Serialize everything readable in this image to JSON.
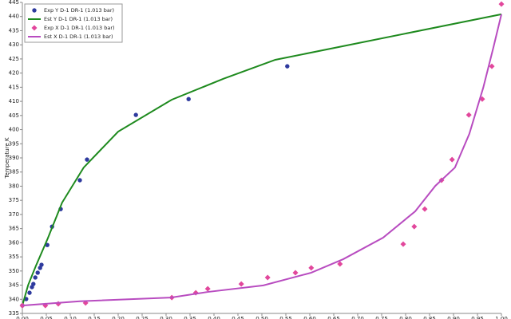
{
  "chart_data": {
    "type": "scatter",
    "y_label": "Temperature K",
    "xlim": [
      0,
      1
    ],
    "ylim": [
      335,
      445
    ],
    "xticks": [
      {
        "value": 0,
        "label": "0.00"
      },
      {
        "value": 0.05,
        "label": "0.05"
      },
      {
        "value": 0.1,
        "label": "0.10"
      },
      {
        "value": 0.15,
        "label": "0.15"
      },
      {
        "value": 0.2,
        "label": "0.20"
      },
      {
        "value": 0.25,
        "label": "0.25"
      },
      {
        "value": 0.3,
        "label": "0.30"
      },
      {
        "value": 0.35,
        "label": "0.35"
      },
      {
        "value": 0.4,
        "label": "0.40"
      },
      {
        "value": 0.45,
        "label": "0.45"
      },
      {
        "value": 0.5,
        "label": "0.50"
      },
      {
        "value": 0.55,
        "label": "0.55"
      },
      {
        "value": 0.6,
        "label": "0.60"
      },
      {
        "value": 0.65,
        "label": "0.65"
      },
      {
        "value": 0.7,
        "label": "0.70"
      },
      {
        "value": 0.75,
        "label": "0.75"
      },
      {
        "value": 0.8,
        "label": "0.80"
      },
      {
        "value": 0.85,
        "label": "0.85"
      },
      {
        "value": 0.9,
        "label": "0.90"
      },
      {
        "value": 0.95,
        "label": "0.95"
      },
      {
        "value": 1,
        "label": "1.00"
      }
    ],
    "yticks": [
      335,
      340,
      345,
      350,
      355,
      360,
      365,
      370,
      375,
      380,
      385,
      390,
      395,
      400,
      405,
      410,
      415,
      420,
      425,
      430,
      435,
      440,
      445
    ],
    "series": [
      {
        "name": "Exp Y D-1 DR-1  (1.013 bar)",
        "color": "#2e3a9e",
        "style": "marker",
        "marker": "circle",
        "x": [
          0,
          0.008,
          0.015,
          0.02,
          0.023,
          0.027,
          0.032,
          0.037,
          0.04,
          0.052,
          0.062,
          0.08,
          0.12,
          0.135,
          0.237,
          0.347,
          0.553
        ],
        "values": [
          337.8,
          340.1,
          342.3,
          344.3,
          345.4,
          347.7,
          349.4,
          351.1,
          352.2,
          359.2,
          365.7,
          371.9,
          382.1,
          389.4,
          405.2,
          410.8,
          422.4
        ]
      },
      {
        "name": "Est Y D-1 DR-1  (1.013 bar)",
        "color": "#1e8a1e",
        "style": "line",
        "x": [
          0,
          0.012,
          0.028,
          0.053,
          0.083,
          0.128,
          0.2,
          0.312,
          0.42,
          0.528,
          1
        ],
        "values": [
          337.8,
          345,
          351.7,
          361.5,
          374.2,
          386.6,
          399.3,
          410.6,
          418,
          424.7,
          440.8
        ]
      },
      {
        "name": "Exp X D-1 DR-1  (1.013 bar)",
        "color": "#e2479c",
        "style": "marker",
        "marker": "diamond",
        "x": [
          0,
          0.048,
          0.075,
          0.132,
          0.312,
          0.362,
          0.387,
          0.457,
          0.512,
          0.57,
          0.603,
          0.663,
          0.795,
          0.818,
          0.84,
          0.875,
          0.897,
          0.932,
          0.96,
          0.98,
          1
        ],
        "values": [
          337.8,
          337.8,
          338.4,
          338.7,
          340.6,
          342.3,
          343.7,
          345.4,
          347.7,
          349.4,
          351.1,
          352.5,
          359.5,
          365.7,
          371.9,
          382.1,
          389.4,
          405.2,
          410.8,
          422.4,
          444.4
        ]
      },
      {
        "name": "Est X D-1 DR-1  (1.013 bar)",
        "color": "#b84cc0",
        "style": "line",
        "x": [
          0,
          0.12,
          0.31,
          0.387,
          0.503,
          0.603,
          0.67,
          0.753,
          0.82,
          0.862,
          0.903,
          0.933,
          0.962,
          0.983,
          1
        ],
        "values": [
          337.8,
          339.3,
          340.6,
          342.6,
          344.9,
          349.4,
          354.2,
          361.8,
          371.1,
          380.1,
          386.6,
          398.5,
          414.8,
          428.9,
          440.8
        ]
      }
    ]
  }
}
